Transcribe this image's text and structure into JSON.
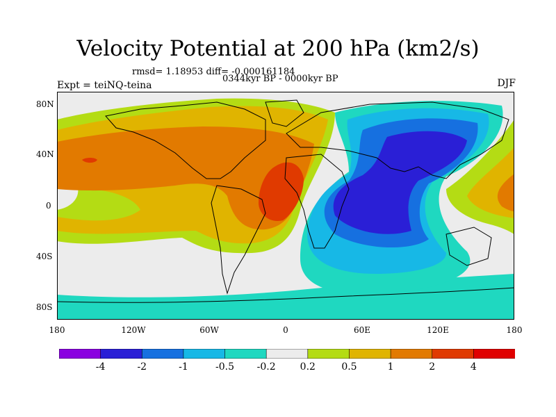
{
  "title": "Velocity Potential at 200 hPa (km2/s)",
  "stats": "rmsd= 1.18953 diff= -0.000161184",
  "subtitle": "0344kyr BP - 0000kyr BP",
  "experiment": "Expt = teiNQ-teina",
  "season": "DJF",
  "lat_labels": [
    "80N",
    "40N",
    "0",
    "40S",
    "80S"
  ],
  "lon_labels": [
    "180",
    "120W",
    "60W",
    "0",
    "60E",
    "120E",
    "180"
  ],
  "colorbar": {
    "colors": [
      "#8a00e0",
      "#2a1fd6",
      "#1670e0",
      "#17b8e6",
      "#1fd8c0",
      "#ececec",
      "#b4dc14",
      "#e0b400",
      "#e27a00",
      "#e03a00",
      "#e00000"
    ],
    "labels": [
      "-4",
      "-2",
      "-1",
      "-0.5",
      "-0.2",
      "0.2",
      "0.5",
      "1",
      "2",
      "4"
    ]
  },
  "palette": {
    "neutral": "#ececec",
    "teal": "#1fd8c0",
    "cyan": "#17b8e6",
    "blue": "#1670e0",
    "darkblue": "#2a1fd6",
    "yellowgreen": "#b4dc14",
    "gold": "#e0b400",
    "orange": "#e27a00",
    "redorange": "#e03a00"
  }
}
